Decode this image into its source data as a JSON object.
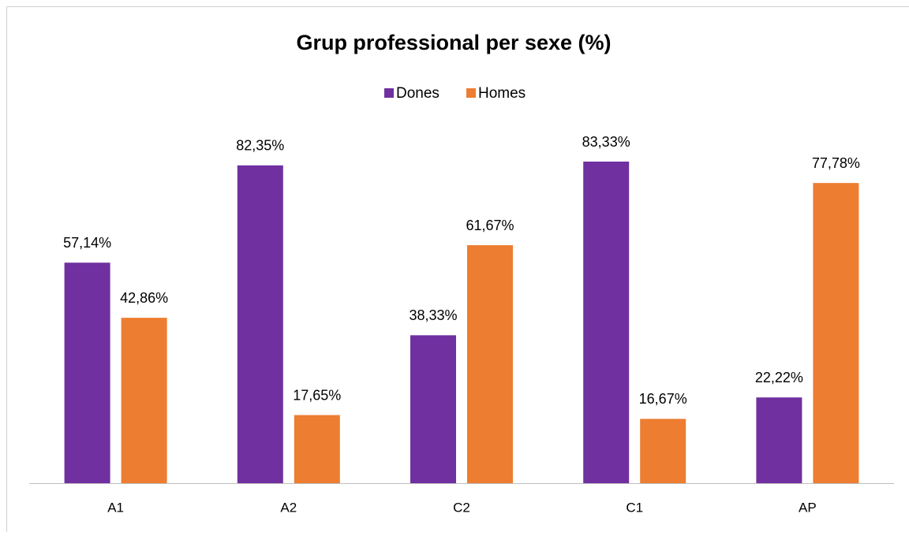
{
  "chart_data": {
    "type": "bar",
    "title": "Grup professional per sexe (%)",
    "categories": [
      "A1",
      "A2",
      "C2",
      "C1",
      "AP"
    ],
    "series": [
      {
        "name": "Dones",
        "color": "#7030a0",
        "values": [
          57.14,
          82.35,
          38.33,
          83.33,
          22.22
        ],
        "value_labels": [
          "57,14%",
          "82,35%",
          "38,33%",
          "83,33%",
          "22,22%"
        ]
      },
      {
        "name": "Homes",
        "color": "#ed7d31",
        "values": [
          42.86,
          17.65,
          61.67,
          16.67,
          77.78
        ],
        "value_labels": [
          "42,86%",
          "17,65%",
          "61,67%",
          "16,67%",
          "77,78%"
        ]
      }
    ],
    "legend": "top"
  }
}
